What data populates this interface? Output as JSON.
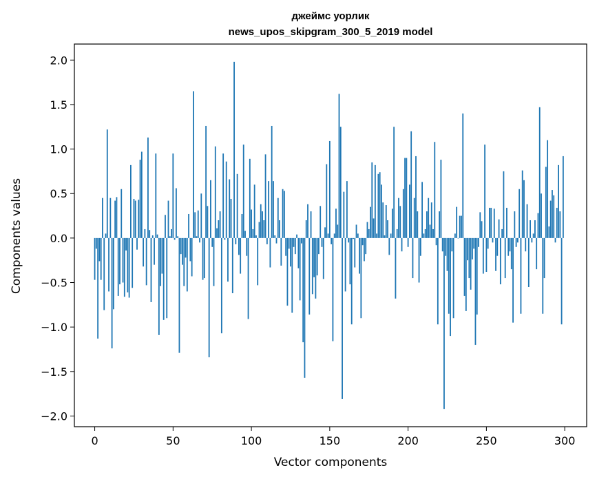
{
  "chart_data": {
    "type": "bar",
    "title_line1": "джеймс уорлик",
    "title_line2": "news_upos_skipgram_300_5_2019 model",
    "xlabel": "Vector components",
    "ylabel": "Components values",
    "xlim": [
      -13,
      314
    ],
    "ylim": [
      -2.12,
      2.18
    ],
    "xticks": [
      0,
      50,
      100,
      150,
      200,
      250,
      300
    ],
    "yticks": [
      2.0,
      1.5,
      1.0,
      0.5,
      0.0,
      -0.5,
      -1.0,
      -1.5,
      -2.0
    ],
    "ytick_labels": [
      "2.0",
      "1.5",
      "1.0",
      "0.5",
      "0.0",
      "−0.5",
      "−1.0",
      "−1.5",
      "−2.0"
    ],
    "bar_color": "#1f77b4",
    "values": [
      -0.47,
      -0.12,
      -1.13,
      -0.26,
      -0.47,
      0.45,
      -0.81,
      0.05,
      1.22,
      -0.6,
      0.45,
      -1.24,
      -0.8,
      0.42,
      0.46,
      -0.65,
      -0.52,
      0.55,
      -0.5,
      -0.66,
      -0.14,
      -0.61,
      -0.67,
      0.82,
      -0.56,
      0.44,
      0.42,
      -0.13,
      0.43,
      0.88,
      0.97,
      -0.32,
      0.1,
      -0.53,
      1.13,
      0.09,
      -0.72,
      0.03,
      -0.3,
      0.95,
      0.04,
      -1.09,
      -0.54,
      -0.4,
      -0.92,
      0.26,
      -0.9,
      0.42,
      0.02,
      0.1,
      0.95,
      -0.02,
      0.56,
      0.02,
      -1.29,
      -0.18,
      -0.3,
      -0.54,
      -0.22,
      -0.6,
      0.27,
      -0.26,
      -0.43,
      1.65,
      0.29,
      0.02,
      0.31,
      -0.05,
      0.5,
      -0.47,
      -0.45,
      1.26,
      0.36,
      -1.34,
      0.65,
      -0.1,
      -0.54,
      1.03,
      0.11,
      0.2,
      0.3,
      -1.07,
      0.95,
      -0.02,
      0.86,
      -0.49,
      0.66,
      0.44,
      -0.62,
      1.98,
      -0.07,
      0.72,
      -0.19,
      -0.4,
      0.27,
      1.05,
      0.08,
      -0.2,
      -0.91,
      0.89,
      0.32,
      0.1,
      0.6,
      0.03,
      -0.53,
      0.18,
      0.38,
      0.3,
      0.2,
      0.94,
      -0.07,
      0.64,
      -0.33,
      1.26,
      0.64,
      0.03,
      -0.06,
      0.45,
      0.2,
      -0.31,
      0.55,
      0.53,
      -0.2,
      -0.76,
      -0.12,
      -0.32,
      -0.84,
      -0.1,
      -0.18,
      0.04,
      -0.34,
      -0.7,
      -0.06,
      -1.17,
      -1.57,
      0.2,
      0.38,
      -0.86,
      0.3,
      -0.63,
      -0.44,
      -0.68,
      -0.42,
      -0.18,
      0.36,
      -0.1,
      -0.46,
      0.12,
      0.83,
      0.05,
      1.09,
      -0.07,
      -1.16,
      0.05,
      0.33,
      0.15,
      1.62,
      1.25,
      -1.81,
      0.52,
      -0.6,
      0.64,
      -0.05,
      -0.52,
      -0.97,
      -0.01,
      -0.33,
      0.15,
      0.05,
      -0.4,
      -0.9,
      -0.08,
      -0.26,
      -0.18,
      0.18,
      0.1,
      0.35,
      0.85,
      0.22,
      0.82,
      0.05,
      0.72,
      0.74,
      0.6,
      0.4,
      0.03,
      0.37,
      0.2,
      -0.19,
      0.05,
      0.33,
      1.25,
      -0.68,
      0.1,
      0.45,
      0.36,
      -0.15,
      0.55,
      0.9,
      0.9,
      -0.1,
      0.6,
      1.2,
      -0.45,
      0.45,
      0.92,
      0.3,
      -0.5,
      -0.2,
      0.63,
      0.05,
      0.1,
      0.3,
      0.45,
      0.15,
      0.4,
      0.1,
      1.08,
      -0.08,
      -0.97,
      0.3,
      0.88,
      -0.15,
      -1.92,
      -0.2,
      -0.37,
      -0.85,
      -1.1,
      -0.15,
      -0.9,
      0.05,
      0.35,
      0.0,
      0.25,
      0.25,
      1.4,
      -0.65,
      -0.82,
      -0.25,
      -0.45,
      -0.58,
      -0.24,
      -0.12,
      -1.2,
      -0.86,
      -0.1,
      0.29,
      0.19,
      -0.4,
      1.05,
      -0.38,
      -0.12,
      0.34,
      0.34,
      -0.05,
      0.33,
      -0.37,
      -0.2,
      0.21,
      -0.52,
      0.1,
      0.75,
      -0.45,
      0.34,
      -0.2,
      -0.15,
      -0.35,
      -0.95,
      0.3,
      -0.1,
      -0.05,
      0.55,
      -0.85,
      0.76,
      0.65,
      -0.15,
      0.38,
      -0.55,
      0.2,
      -0.05,
      0.05,
      0.2,
      -0.35,
      0.28,
      1.47,
      0.5,
      -0.85,
      -0.45,
      0.8,
      1.1,
      0.13,
      0.42,
      0.54,
      0.48,
      -0.05,
      0.34,
      0.82,
      0.3,
      -0.97,
      0.92
    ]
  }
}
